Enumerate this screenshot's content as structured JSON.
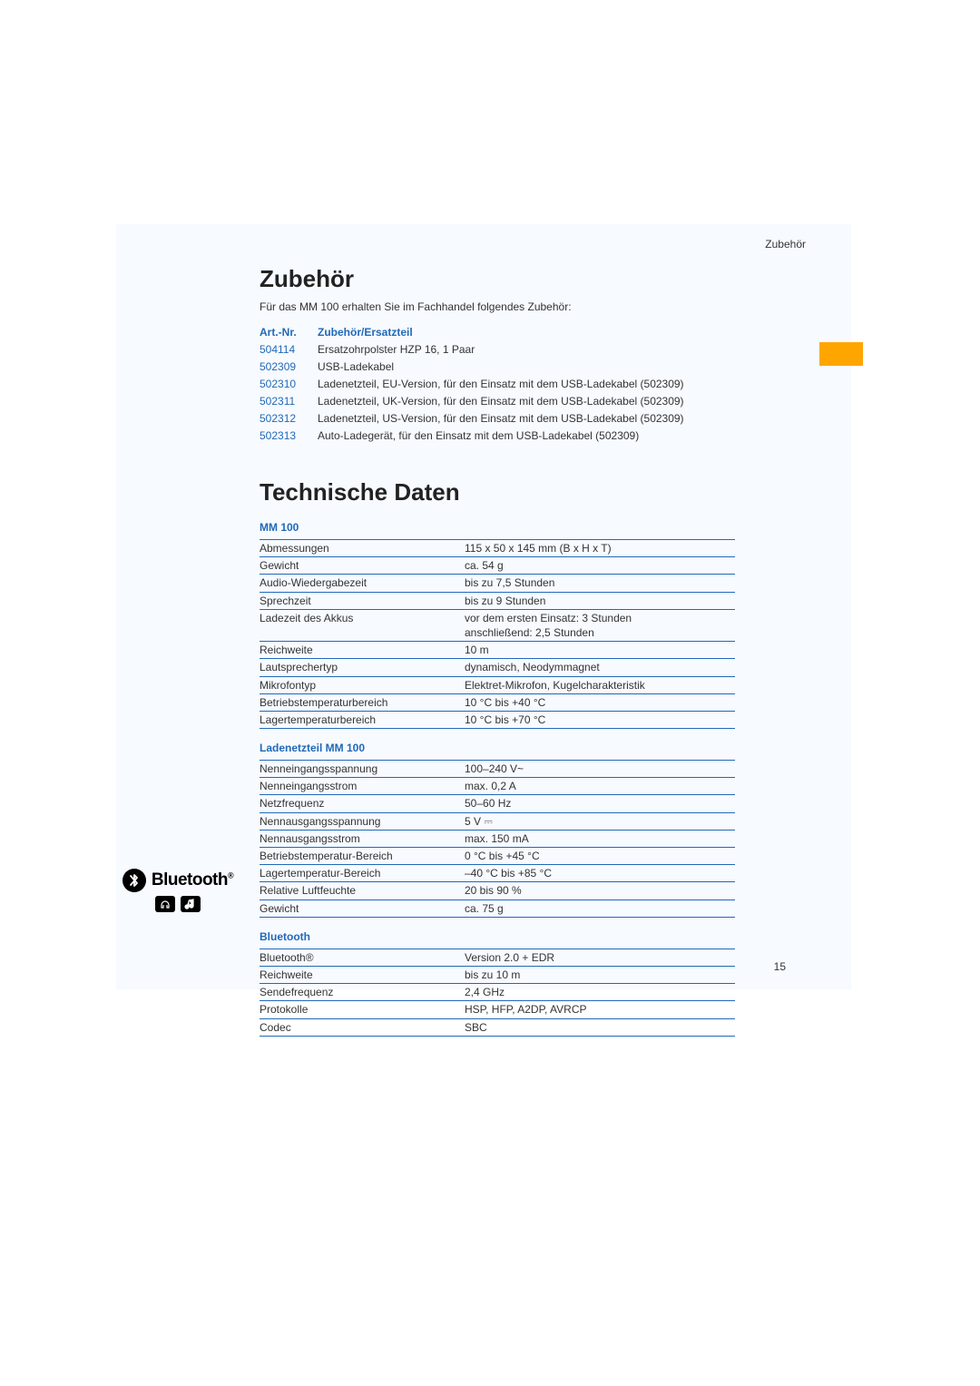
{
  "header_label": "Zubehör",
  "section1": {
    "title": "Zubehör",
    "intro": "Für das MM 100 erhalten Sie im Fachhandel folgendes Zubehör:",
    "col_art": "Art.-Nr.",
    "col_desc": "Zubehör/Ersatzteil",
    "rows": [
      {
        "art": "504114",
        "desc": "Ersatzohrpolster HZP 16, 1 Paar"
      },
      {
        "art": "502309",
        "desc": "USB-Ladekabel"
      },
      {
        "art": "502310",
        "desc": "Ladenetzteil, EU-Version, für den Einsatz mit dem USB-Ladekabel (502309)"
      },
      {
        "art": "502311",
        "desc": "Ladenetzteil, UK-Version, für den Einsatz mit dem USB-Ladekabel (502309)"
      },
      {
        "art": "502312",
        "desc": "Ladenetzteil, US-Version, für den Einsatz mit dem USB-Ladekabel (502309)"
      },
      {
        "art": "502313",
        "desc": "Auto-Ladegerät, für den Einsatz mit dem USB-Ladekabel (502309)"
      }
    ]
  },
  "section2": {
    "title": "Technische Daten",
    "s1_title": "MM 100",
    "s1_rows": [
      {
        "label": "Abmessungen",
        "value": "115 x 50 x 145 mm (B x H x T)"
      },
      {
        "label": "Gewicht",
        "value": "ca. 54 g"
      },
      {
        "label": "Audio-Wiedergabezeit",
        "value": "bis zu 7,5 Stunden"
      },
      {
        "label": "Sprechzeit",
        "value": "bis zu 9 Stunden"
      },
      {
        "label": "Ladezeit des Akkus",
        "value": "vor dem ersten Einsatz: 3 Stunden\nanschließend: 2,5 Stunden"
      },
      {
        "label": "Reichweite",
        "value": "10 m"
      },
      {
        "label": "Lautsprechertyp",
        "value": "dynamisch, Neodymmagnet"
      },
      {
        "label": "Mikrofontyp",
        "value": "Elektret-Mikrofon, Kugelcharakteristik"
      },
      {
        "label": "Betriebstemperaturbereich",
        "value": "10 °C bis +40 °C"
      },
      {
        "label": "Lagertemperaturbereich",
        "value": "10 °C bis +70 °C"
      }
    ],
    "s2_title": "Ladenetzteil MM 100",
    "s2_rows": [
      {
        "label": "Nenneingangsspannung",
        "value": "100–240 V~"
      },
      {
        "label": "Nenneingangsstrom",
        "value": "max. 0,2 A"
      },
      {
        "label": "Netzfrequenz",
        "value": "50–60 Hz"
      },
      {
        "label": "Nennausgangsspannung",
        "value": "5 V ⎓"
      },
      {
        "label": "Nennausgangsstrom",
        "value": "max. 150 mA"
      },
      {
        "label": "Betriebstemperatur-Bereich",
        "value": "0 °C bis +45 °C"
      },
      {
        "label": "Lagertemperatur-Bereich",
        "value": "–40 °C bis +85 °C"
      },
      {
        "label": "Relative Luftfeuchte",
        "value": "20 bis 90 %"
      },
      {
        "label": "Gewicht",
        "value": "ca. 75 g"
      }
    ],
    "s3_title": "Bluetooth",
    "s3_rows": [
      {
        "label": "Bluetooth®",
        "value": "Version 2.0 + EDR"
      },
      {
        "label": "Reichweite",
        "value": "bis zu 10 m"
      },
      {
        "label": "Sendefrequenz",
        "value": "2,4 GHz"
      },
      {
        "label": "Protokolle",
        "value": "HSP, HFP, A2DP, AVRCP"
      },
      {
        "label": "Codec",
        "value": "SBC"
      }
    ]
  },
  "bluetooth_logo": {
    "text": "Bluetooth",
    "reg": "®"
  },
  "page_number": "15",
  "colors": {
    "blue": "#2169b8",
    "orange": "#ffa500",
    "page_bg": "#f7faff",
    "text": "#333333"
  }
}
